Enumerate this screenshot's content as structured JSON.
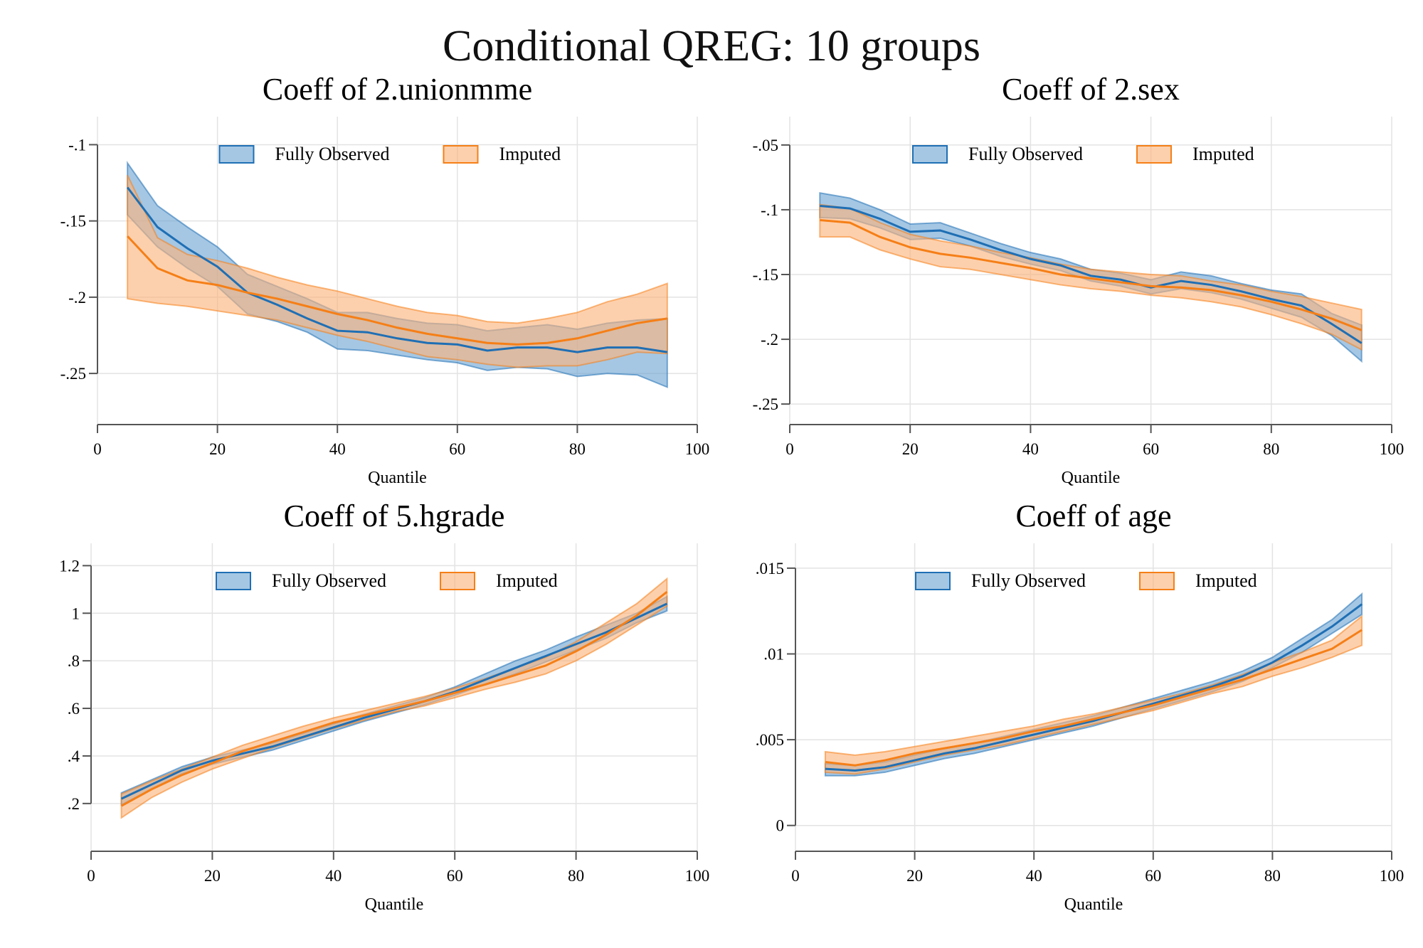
{
  "title": "Conditional QREG: 10 groups",
  "colors": {
    "fully_observed_line": "#1f6fb4",
    "fully_observed_fill": "#6da5d3",
    "imputed_line": "#f57f17",
    "imputed_fill": "#fcb37a",
    "grid": "#e3e3e3",
    "axis": "#555555"
  },
  "chart_data": [
    {
      "type": "area",
      "title": "Coeff of 2.unionmme",
      "xlabel": "Quantile",
      "ylabel": "",
      "xlim": [
        0,
        100
      ],
      "ylim": [
        -0.27,
        -0.09
      ],
      "xticks": [
        0,
        20,
        40,
        60,
        80,
        100
      ],
      "xtick_labels": [
        "0",
        "20",
        "40",
        "60",
        "80",
        "100"
      ],
      "yticks": [
        -0.1,
        -0.15,
        -0.2,
        -0.25
      ],
      "ytick_labels": [
        "-.1",
        "-.15",
        "-.2",
        "-.25"
      ],
      "grid": true,
      "legend_position": "top-center",
      "x": [
        5,
        10,
        15,
        20,
        25,
        30,
        35,
        40,
        45,
        50,
        55,
        60,
        65,
        70,
        75,
        80,
        85,
        90,
        95
      ],
      "series": [
        {
          "name": "Fully Observed",
          "estimate": [
            -0.128,
            -0.154,
            -0.168,
            -0.18,
            -0.197,
            -0.205,
            -0.214,
            -0.222,
            -0.223,
            -0.227,
            -0.23,
            -0.231,
            -0.235,
            -0.233,
            -0.233,
            -0.236,
            -0.233,
            -0.233,
            -0.236
          ],
          "upper": [
            -0.112,
            -0.14,
            -0.154,
            -0.167,
            -0.185,
            -0.193,
            -0.201,
            -0.21,
            -0.21,
            -0.214,
            -0.217,
            -0.218,
            -0.222,
            -0.22,
            -0.218,
            -0.221,
            -0.217,
            -0.215,
            -0.214
          ],
          "lower": [
            -0.146,
            -0.167,
            -0.181,
            -0.193,
            -0.211,
            -0.216,
            -0.223,
            -0.234,
            -0.235,
            -0.238,
            -0.241,
            -0.243,
            -0.248,
            -0.246,
            -0.247,
            -0.252,
            -0.25,
            -0.251,
            -0.259
          ]
        },
        {
          "name": "Imputed",
          "estimate": [
            -0.16,
            -0.181,
            -0.189,
            -0.192,
            -0.197,
            -0.201,
            -0.206,
            -0.211,
            -0.215,
            -0.22,
            -0.224,
            -0.227,
            -0.23,
            -0.231,
            -0.23,
            -0.227,
            -0.222,
            -0.217,
            -0.214
          ],
          "upper": [
            -0.12,
            -0.161,
            -0.172,
            -0.176,
            -0.181,
            -0.187,
            -0.192,
            -0.196,
            -0.201,
            -0.206,
            -0.21,
            -0.212,
            -0.216,
            -0.217,
            -0.214,
            -0.21,
            -0.203,
            -0.198,
            -0.191
          ],
          "lower": [
            -0.201,
            -0.204,
            -0.206,
            -0.209,
            -0.212,
            -0.215,
            -0.22,
            -0.225,
            -0.229,
            -0.234,
            -0.239,
            -0.241,
            -0.244,
            -0.246,
            -0.245,
            -0.245,
            -0.241,
            -0.236,
            -0.237
          ]
        }
      ]
    },
    {
      "type": "area",
      "title": "Coeff of 2.sex",
      "xlabel": "Quantile",
      "ylabel": "",
      "xlim": [
        0,
        100
      ],
      "ylim": [
        -0.262,
        -0.038
      ],
      "xticks": [
        0,
        20,
        40,
        60,
        80,
        100
      ],
      "xtick_labels": [
        "0",
        "20",
        "40",
        "60",
        "80",
        "100"
      ],
      "yticks": [
        -0.05,
        -0.1,
        -0.15,
        -0.2,
        -0.25
      ],
      "ytick_labels": [
        "-.05",
        "-.1",
        "-.15",
        "-.2",
        "-.25"
      ],
      "grid": true,
      "legend_position": "top-center",
      "x": [
        5,
        10,
        15,
        20,
        25,
        30,
        35,
        40,
        45,
        50,
        55,
        60,
        65,
        70,
        75,
        80,
        85,
        90,
        95
      ],
      "series": [
        {
          "name": "Fully Observed",
          "estimate": [
            -0.097,
            -0.099,
            -0.107,
            -0.117,
            -0.116,
            -0.123,
            -0.131,
            -0.138,
            -0.143,
            -0.151,
            -0.154,
            -0.16,
            -0.155,
            -0.158,
            -0.163,
            -0.169,
            -0.174,
            -0.188,
            -0.203
          ],
          "upper": [
            -0.087,
            -0.091,
            -0.1,
            -0.111,
            -0.11,
            -0.118,
            -0.126,
            -0.133,
            -0.138,
            -0.146,
            -0.149,
            -0.154,
            -0.148,
            -0.151,
            -0.157,
            -0.162,
            -0.165,
            -0.18,
            -0.189
          ],
          "lower": [
            -0.106,
            -0.107,
            -0.114,
            -0.123,
            -0.122,
            -0.128,
            -0.136,
            -0.142,
            -0.147,
            -0.155,
            -0.159,
            -0.165,
            -0.161,
            -0.164,
            -0.169,
            -0.176,
            -0.183,
            -0.197,
            -0.217
          ]
        },
        {
          "name": "Imputed",
          "estimate": [
            -0.108,
            -0.11,
            -0.121,
            -0.129,
            -0.134,
            -0.137,
            -0.141,
            -0.145,
            -0.15,
            -0.153,
            -0.156,
            -0.159,
            -0.16,
            -0.162,
            -0.166,
            -0.171,
            -0.177,
            -0.184,
            -0.193
          ],
          "upper": [
            -0.096,
            -0.099,
            -0.11,
            -0.119,
            -0.124,
            -0.128,
            -0.133,
            -0.137,
            -0.142,
            -0.146,
            -0.148,
            -0.15,
            -0.151,
            -0.155,
            -0.158,
            -0.163,
            -0.167,
            -0.172,
            -0.177
          ],
          "lower": [
            -0.121,
            -0.121,
            -0.131,
            -0.138,
            -0.144,
            -0.146,
            -0.15,
            -0.154,
            -0.158,
            -0.161,
            -0.163,
            -0.166,
            -0.168,
            -0.171,
            -0.175,
            -0.181,
            -0.188,
            -0.196,
            -0.208
          ]
        }
      ]
    },
    {
      "type": "area",
      "title": "Coeff of 5.hgrade",
      "xlabel": "Quantile",
      "ylabel": "",
      "xlim": [
        0,
        100
      ],
      "ylim": [
        0.05,
        1.24
      ],
      "xticks": [
        0,
        20,
        40,
        60,
        80,
        100
      ],
      "xtick_labels": [
        "0",
        "20",
        "40",
        "60",
        "80",
        "100"
      ],
      "yticks": [
        1.2,
        1.0,
        0.8,
        0.6,
        0.4,
        0.2
      ],
      "ytick_labels": [
        "1.2",
        "1",
        ".8",
        ".6",
        ".4",
        ".2"
      ],
      "grid": true,
      "legend_position": "top-center",
      "x": [
        5,
        10,
        15,
        20,
        25,
        30,
        35,
        40,
        45,
        50,
        55,
        60,
        65,
        70,
        75,
        80,
        85,
        90,
        95
      ],
      "series": [
        {
          "name": "Fully Observed",
          "estimate": [
            0.22,
            0.28,
            0.34,
            0.38,
            0.41,
            0.44,
            0.48,
            0.52,
            0.56,
            0.595,
            0.63,
            0.67,
            0.72,
            0.77,
            0.82,
            0.87,
            0.92,
            0.98,
            1.04
          ],
          "upper": [
            0.245,
            0.3,
            0.355,
            0.395,
            0.425,
            0.455,
            0.495,
            0.535,
            0.575,
            0.61,
            0.645,
            0.69,
            0.745,
            0.8,
            0.845,
            0.9,
            0.95,
            1.0,
            1.07
          ],
          "lower": [
            0.195,
            0.26,
            0.325,
            0.365,
            0.395,
            0.425,
            0.465,
            0.505,
            0.545,
            0.58,
            0.615,
            0.655,
            0.7,
            0.745,
            0.795,
            0.845,
            0.895,
            0.96,
            1.01
          ]
        },
        {
          "name": "Imputed",
          "estimate": [
            0.19,
            0.26,
            0.32,
            0.37,
            0.42,
            0.46,
            0.5,
            0.54,
            0.57,
            0.6,
            0.63,
            0.665,
            0.7,
            0.74,
            0.78,
            0.84,
            0.91,
            0.99,
            1.09
          ],
          "upper": [
            0.24,
            0.295,
            0.345,
            0.395,
            0.445,
            0.485,
            0.525,
            0.56,
            0.59,
            0.62,
            0.65,
            0.685,
            0.725,
            0.77,
            0.815,
            0.88,
            0.96,
            1.04,
            1.145
          ],
          "lower": [
            0.14,
            0.225,
            0.29,
            0.345,
            0.39,
            0.435,
            0.475,
            0.515,
            0.55,
            0.585,
            0.61,
            0.645,
            0.68,
            0.71,
            0.745,
            0.8,
            0.87,
            0.95,
            1.03
          ]
        }
      ]
    },
    {
      "type": "area",
      "title": "Coeff of age",
      "xlabel": "Quantile",
      "ylabel": "",
      "xlim": [
        0,
        100
      ],
      "ylim": [
        -0.0008,
        0.0157
      ],
      "xticks": [
        0,
        20,
        40,
        60,
        80,
        100
      ],
      "xtick_labels": [
        "0",
        "20",
        "40",
        "60",
        "80",
        "100"
      ],
      "yticks": [
        0.015,
        0.01,
        0.005,
        0
      ],
      "ytick_labels": [
        ".015",
        ".01",
        ".005",
        "0"
      ],
      "grid": true,
      "legend_position": "top-center",
      "x": [
        5,
        10,
        15,
        20,
        25,
        30,
        35,
        40,
        45,
        50,
        55,
        60,
        65,
        70,
        75,
        80,
        85,
        90,
        95
      ],
      "series": [
        {
          "name": "Fully Observed",
          "estimate": [
            0.0033,
            0.0032,
            0.0034,
            0.0038,
            0.0042,
            0.0045,
            0.0049,
            0.0053,
            0.0057,
            0.0061,
            0.0066,
            0.0071,
            0.0076,
            0.0081,
            0.0087,
            0.0095,
            0.0105,
            0.0116,
            0.0129
          ],
          "upper": [
            0.0036,
            0.0035,
            0.0037,
            0.0041,
            0.0045,
            0.0048,
            0.0052,
            0.0056,
            0.006,
            0.0064,
            0.0069,
            0.0074,
            0.0079,
            0.0084,
            0.009,
            0.0098,
            0.0109,
            0.012,
            0.0135
          ],
          "lower": [
            0.0029,
            0.0029,
            0.0031,
            0.0035,
            0.0039,
            0.0042,
            0.0046,
            0.005,
            0.0054,
            0.0058,
            0.0063,
            0.0068,
            0.0073,
            0.0078,
            0.0084,
            0.0092,
            0.0101,
            0.0112,
            0.0123
          ]
        },
        {
          "name": "Imputed",
          "estimate": [
            0.0037,
            0.0035,
            0.0038,
            0.0042,
            0.0045,
            0.0048,
            0.0051,
            0.0055,
            0.0058,
            0.0062,
            0.0066,
            0.007,
            0.0075,
            0.008,
            0.0085,
            0.0091,
            0.0097,
            0.0103,
            0.0114
          ],
          "upper": [
            0.0043,
            0.0041,
            0.0043,
            0.0046,
            0.0049,
            0.0052,
            0.0055,
            0.0058,
            0.0062,
            0.0065,
            0.0069,
            0.0073,
            0.0077,
            0.0082,
            0.0088,
            0.0095,
            0.0101,
            0.0108,
            0.0122
          ],
          "lower": [
            0.0031,
            0.003,
            0.0033,
            0.0037,
            0.0041,
            0.0044,
            0.0047,
            0.0051,
            0.0055,
            0.0059,
            0.0063,
            0.0067,
            0.0072,
            0.0077,
            0.0081,
            0.0087,
            0.0092,
            0.0098,
            0.0105
          ]
        }
      ]
    }
  ]
}
